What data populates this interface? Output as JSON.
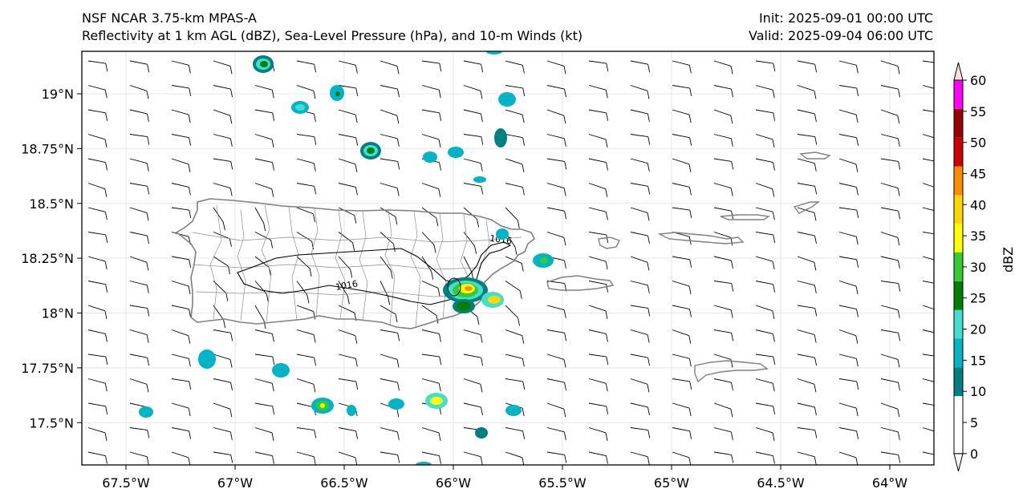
{
  "title": {
    "left_line1": "NSF NCAR 3.75-km MPAS-A",
    "left_line2": "Reflectivity at 1 km AGL (dBZ), Sea-Level Pressure (hPa), and 10-m Winds (kt)",
    "right_line1": "Init: 2025-09-01 00:00 UTC",
    "right_line2": "Valid: 2025-09-04 06:00 UTC"
  },
  "map": {
    "lon_range": [
      -67.7,
      -63.8
    ],
    "lat_range": [
      17.3,
      19.2
    ],
    "lon_ticks": [
      {
        "value": -67.5,
        "label": "67.5°W"
      },
      {
        "value": -67.0,
        "label": "67°W"
      },
      {
        "value": -66.5,
        "label": "66.5°W"
      },
      {
        "value": -66.0,
        "label": "66°W"
      },
      {
        "value": -65.5,
        "label": "65.5°W"
      },
      {
        "value": -65.0,
        "label": "65°W"
      },
      {
        "value": -64.5,
        "label": "64.5°W"
      },
      {
        "value": -64.0,
        "label": "64°W"
      }
    ],
    "lat_ticks": [
      {
        "value": 19.0,
        "label": "19°N"
      },
      {
        "value": 18.75,
        "label": "18.75°N"
      },
      {
        "value": 18.5,
        "label": "18.5°N"
      },
      {
        "value": 18.25,
        "label": "18.25°N"
      },
      {
        "value": 18.0,
        "label": "18°N"
      },
      {
        "value": 17.75,
        "label": "17.75°N"
      },
      {
        "value": 17.5,
        "label": "17.5°N"
      }
    ],
    "isobar_labels": [
      "1016",
      "1016"
    ],
    "coastline_color": "#808080",
    "grid": true
  },
  "colorbar": {
    "label": "dBZ",
    "levels": [
      {
        "value": "0",
        "color": "#ffffff"
      },
      {
        "value": "5",
        "color": "#008080"
      },
      {
        "value": "10",
        "color": "#00b4c8"
      },
      {
        "value": "15",
        "color": "#40e0d0"
      },
      {
        "value": "20",
        "color": "#008000"
      },
      {
        "value": "25",
        "color": "#32cd32"
      },
      {
        "value": "30",
        "color": "#ffff00"
      },
      {
        "value": "35",
        "color": "#ffd700"
      },
      {
        "value": "40",
        "color": "#ff8c00"
      },
      {
        "value": "45",
        "color": "#cc0000"
      },
      {
        "value": "50",
        "color": "#990000"
      },
      {
        "value": "55",
        "color": "#ff00ff"
      },
      {
        "value": "60",
        "color": "#ffe4d6"
      }
    ],
    "extend": "both"
  }
}
